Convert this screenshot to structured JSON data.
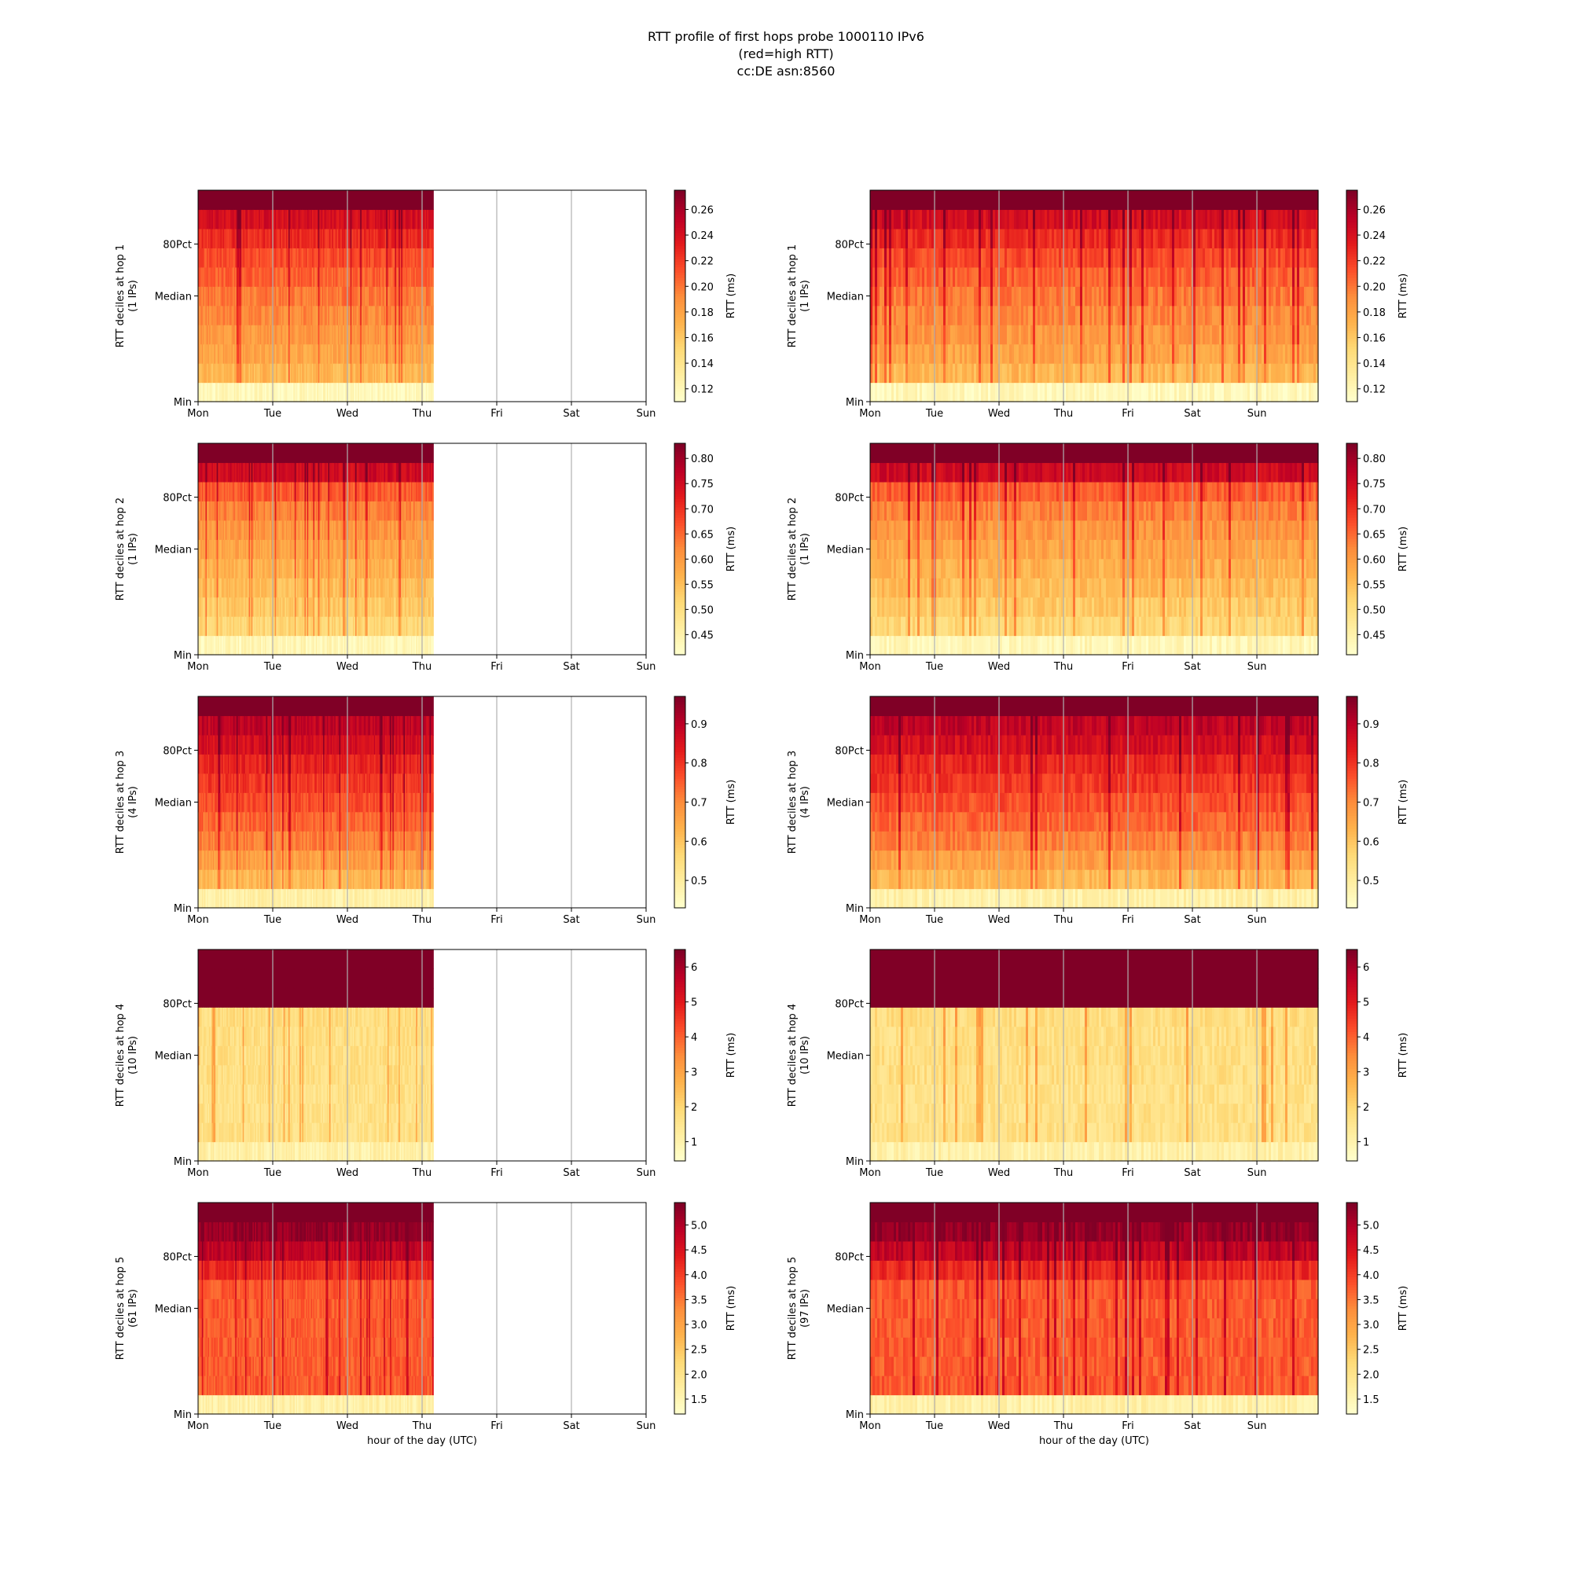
{
  "figure": {
    "title_lines": [
      "RTT profile of first hops probe 1000110 IPv6",
      "(red=high RTT)",
      "cc:DE asn:8560"
    ]
  },
  "colormap": {
    "name": "YlOrRd",
    "stops": [
      "#ffffcc",
      "#ffeda0",
      "#fed976",
      "#feb24c",
      "#fd8d3c",
      "#fc4e2a",
      "#e31a1c",
      "#bd0026",
      "#800026"
    ]
  },
  "chart_data": {
    "type": "heatmap",
    "x_tick_labels_left": [
      "Mon",
      "Tue",
      "Wed",
      "Thu",
      "Fri",
      "Sat",
      "Sun"
    ],
    "x_tick_labels_right": [
      "Mon",
      "Tue",
      "Wed",
      "Thu",
      "Fri",
      "Sat",
      "Sun"
    ],
    "y_tick_labels": [
      "Min",
      "Median",
      "80Pct"
    ],
    "x_label": "hour of the day (UTC)",
    "colorbar_label": "RTT (ms)",
    "deciles": 11,
    "grid": "vertical gridlines at day boundaries",
    "left_data_extent_days": 3.15,
    "right_data_extent_days": 6.95,
    "hops": [
      {
        "hop": 1,
        "ylabel_left": [
          "RTT deciles at hop 1",
          "(1 IPs)"
        ],
        "ylabel_right": [
          "RTT deciles at hop 1",
          "(1 IPs)"
        ],
        "cbar_left": {
          "min": 0.11,
          "max": 0.275,
          "ticks": [
            "0.12",
            "0.14",
            "0.16",
            "0.18",
            "0.20",
            "0.22",
            "0.24",
            "0.26"
          ]
        },
        "cbar_right": {
          "min": 0.11,
          "max": 0.275,
          "ticks": [
            "0.12",
            "0.14",
            "0.16",
            "0.18",
            "0.20",
            "0.22",
            "0.24",
            "0.26"
          ]
        },
        "profile": [
          0.05,
          0.36,
          0.42,
          0.46,
          0.5,
          0.54,
          0.59,
          0.64,
          0.71,
          0.8,
          1.0
        ]
      },
      {
        "hop": 2,
        "ylabel_left": [
          "RTT deciles at hop 2",
          "(1 IPs)"
        ],
        "ylabel_right": [
          "RTT deciles at hop 2",
          "(1 IPs)"
        ],
        "cbar_left": {
          "min": 0.41,
          "max": 0.83,
          "ticks": [
            "0.45",
            "0.50",
            "0.55",
            "0.60",
            "0.65",
            "0.70",
            "0.75",
            "0.80"
          ]
        },
        "cbar_right": {
          "min": 0.41,
          "max": 0.83,
          "ticks": [
            "0.45",
            "0.50",
            "0.55",
            "0.60",
            "0.65",
            "0.70",
            "0.75",
            "0.80"
          ]
        },
        "profile": [
          0.06,
          0.25,
          0.3,
          0.34,
          0.38,
          0.42,
          0.46,
          0.52,
          0.6,
          0.82,
          1.0
        ]
      },
      {
        "hop": 3,
        "ylabel_left": [
          "RTT deciles at hop 3",
          "(4 IPs)"
        ],
        "ylabel_right": [
          "RTT deciles at hop 3",
          "(4 IPs)"
        ],
        "cbar_left": {
          "min": 0.43,
          "max": 0.97,
          "ticks": [
            "0.5",
            "0.6",
            "0.7",
            "0.8",
            "0.9"
          ]
        },
        "cbar_right": {
          "min": 0.43,
          "max": 0.97,
          "ticks": [
            "0.5",
            "0.6",
            "0.7",
            "0.8",
            "0.9"
          ]
        },
        "profile": [
          0.1,
          0.36,
          0.44,
          0.52,
          0.58,
          0.63,
          0.68,
          0.73,
          0.8,
          0.86,
          1.0
        ]
      },
      {
        "hop": 4,
        "ylabel_left": [
          "RTT deciles at hop 4",
          "(10 IPs)"
        ],
        "ylabel_right": [
          "RTT deciles at hop 4",
          "(10 IPs)"
        ],
        "cbar_left": {
          "min": 0.45,
          "max": 6.5,
          "ticks": [
            "1",
            "2",
            "3",
            "4",
            "5",
            "6"
          ]
        },
        "cbar_right": {
          "min": 0.45,
          "max": 6.5,
          "ticks": [
            "1",
            "2",
            "3",
            "4",
            "5",
            "6"
          ]
        },
        "profile": [
          0.1,
          0.2,
          0.2,
          0.2,
          0.21,
          0.21,
          0.21,
          0.22,
          1.0,
          1.0,
          1.0
        ]
      },
      {
        "hop": 5,
        "ylabel_left": [
          "RTT deciles at hop 5",
          "(61 IPs)"
        ],
        "ylabel_right": [
          "RTT deciles at hop 5",
          "(97 IPs)"
        ],
        "cbar_left": {
          "min": 1.2,
          "max": 5.45,
          "ticks": [
            "1.5",
            "2.0",
            "2.5",
            "3.0",
            "3.5",
            "4.0",
            "4.5",
            "5.0"
          ]
        },
        "cbar_right": {
          "min": 1.2,
          "max": 5.45,
          "ticks": [
            "1.5",
            "2.0",
            "2.5",
            "3.0",
            "3.5",
            "4.0",
            "4.5",
            "5.0"
          ]
        },
        "profile": [
          0.1,
          0.6,
          0.6,
          0.6,
          0.6,
          0.6,
          0.61,
          0.72,
          0.86,
          0.95,
          1.0
        ]
      }
    ]
  }
}
